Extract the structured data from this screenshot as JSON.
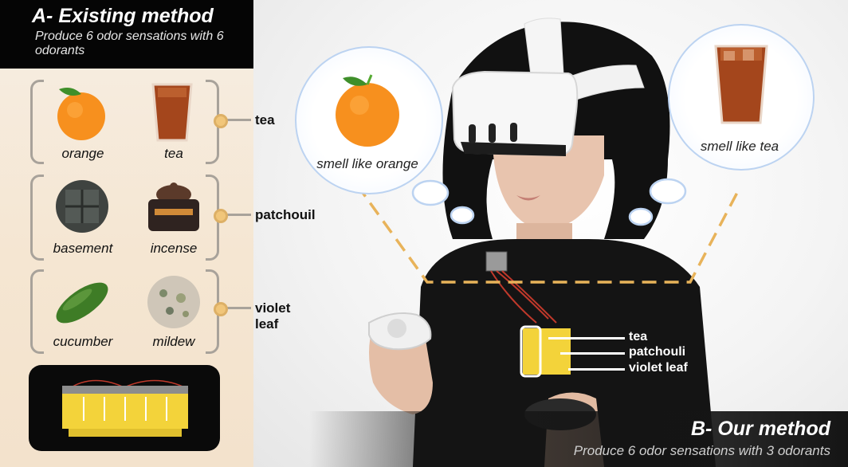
{
  "colors": {
    "panel_bg": "#f5e8d6",
    "bracket": "#a8a29a",
    "knob": "#f1c67a",
    "bubble_border": "#bcd3f1",
    "dash_line": "#e8b35a",
    "cartridge_yellow": "#f3d33a"
  },
  "existing_method": {
    "title": "A- Existing method",
    "subtitle": "Produce 6 odor sensations with 6 odorants",
    "groups": [
      {
        "label": "tea",
        "items": [
          {
            "label": "orange",
            "icon": "orange-icon"
          },
          {
            "label": "tea",
            "icon": "iced-tea-icon"
          }
        ]
      },
      {
        "label": "patchouil",
        "items": [
          {
            "label": "basement",
            "icon": "basement-icon"
          },
          {
            "label": "incense",
            "icon": "incense-burner-icon"
          }
        ]
      },
      {
        "label": "violet leaf",
        "items": [
          {
            "label": "cucumber",
            "icon": "cucumber-icon"
          },
          {
            "label": "mildew",
            "icon": "mildew-icon"
          }
        ]
      }
    ]
  },
  "scene": {
    "bubble_left": "smell like orange",
    "bubble_right": "smell like tea",
    "callouts": [
      "tea",
      "patchouli",
      "violet leaf"
    ]
  },
  "our_method": {
    "title": "B- Our method",
    "subtitle": "Produce 6 odor sensations with 3 odorants"
  }
}
